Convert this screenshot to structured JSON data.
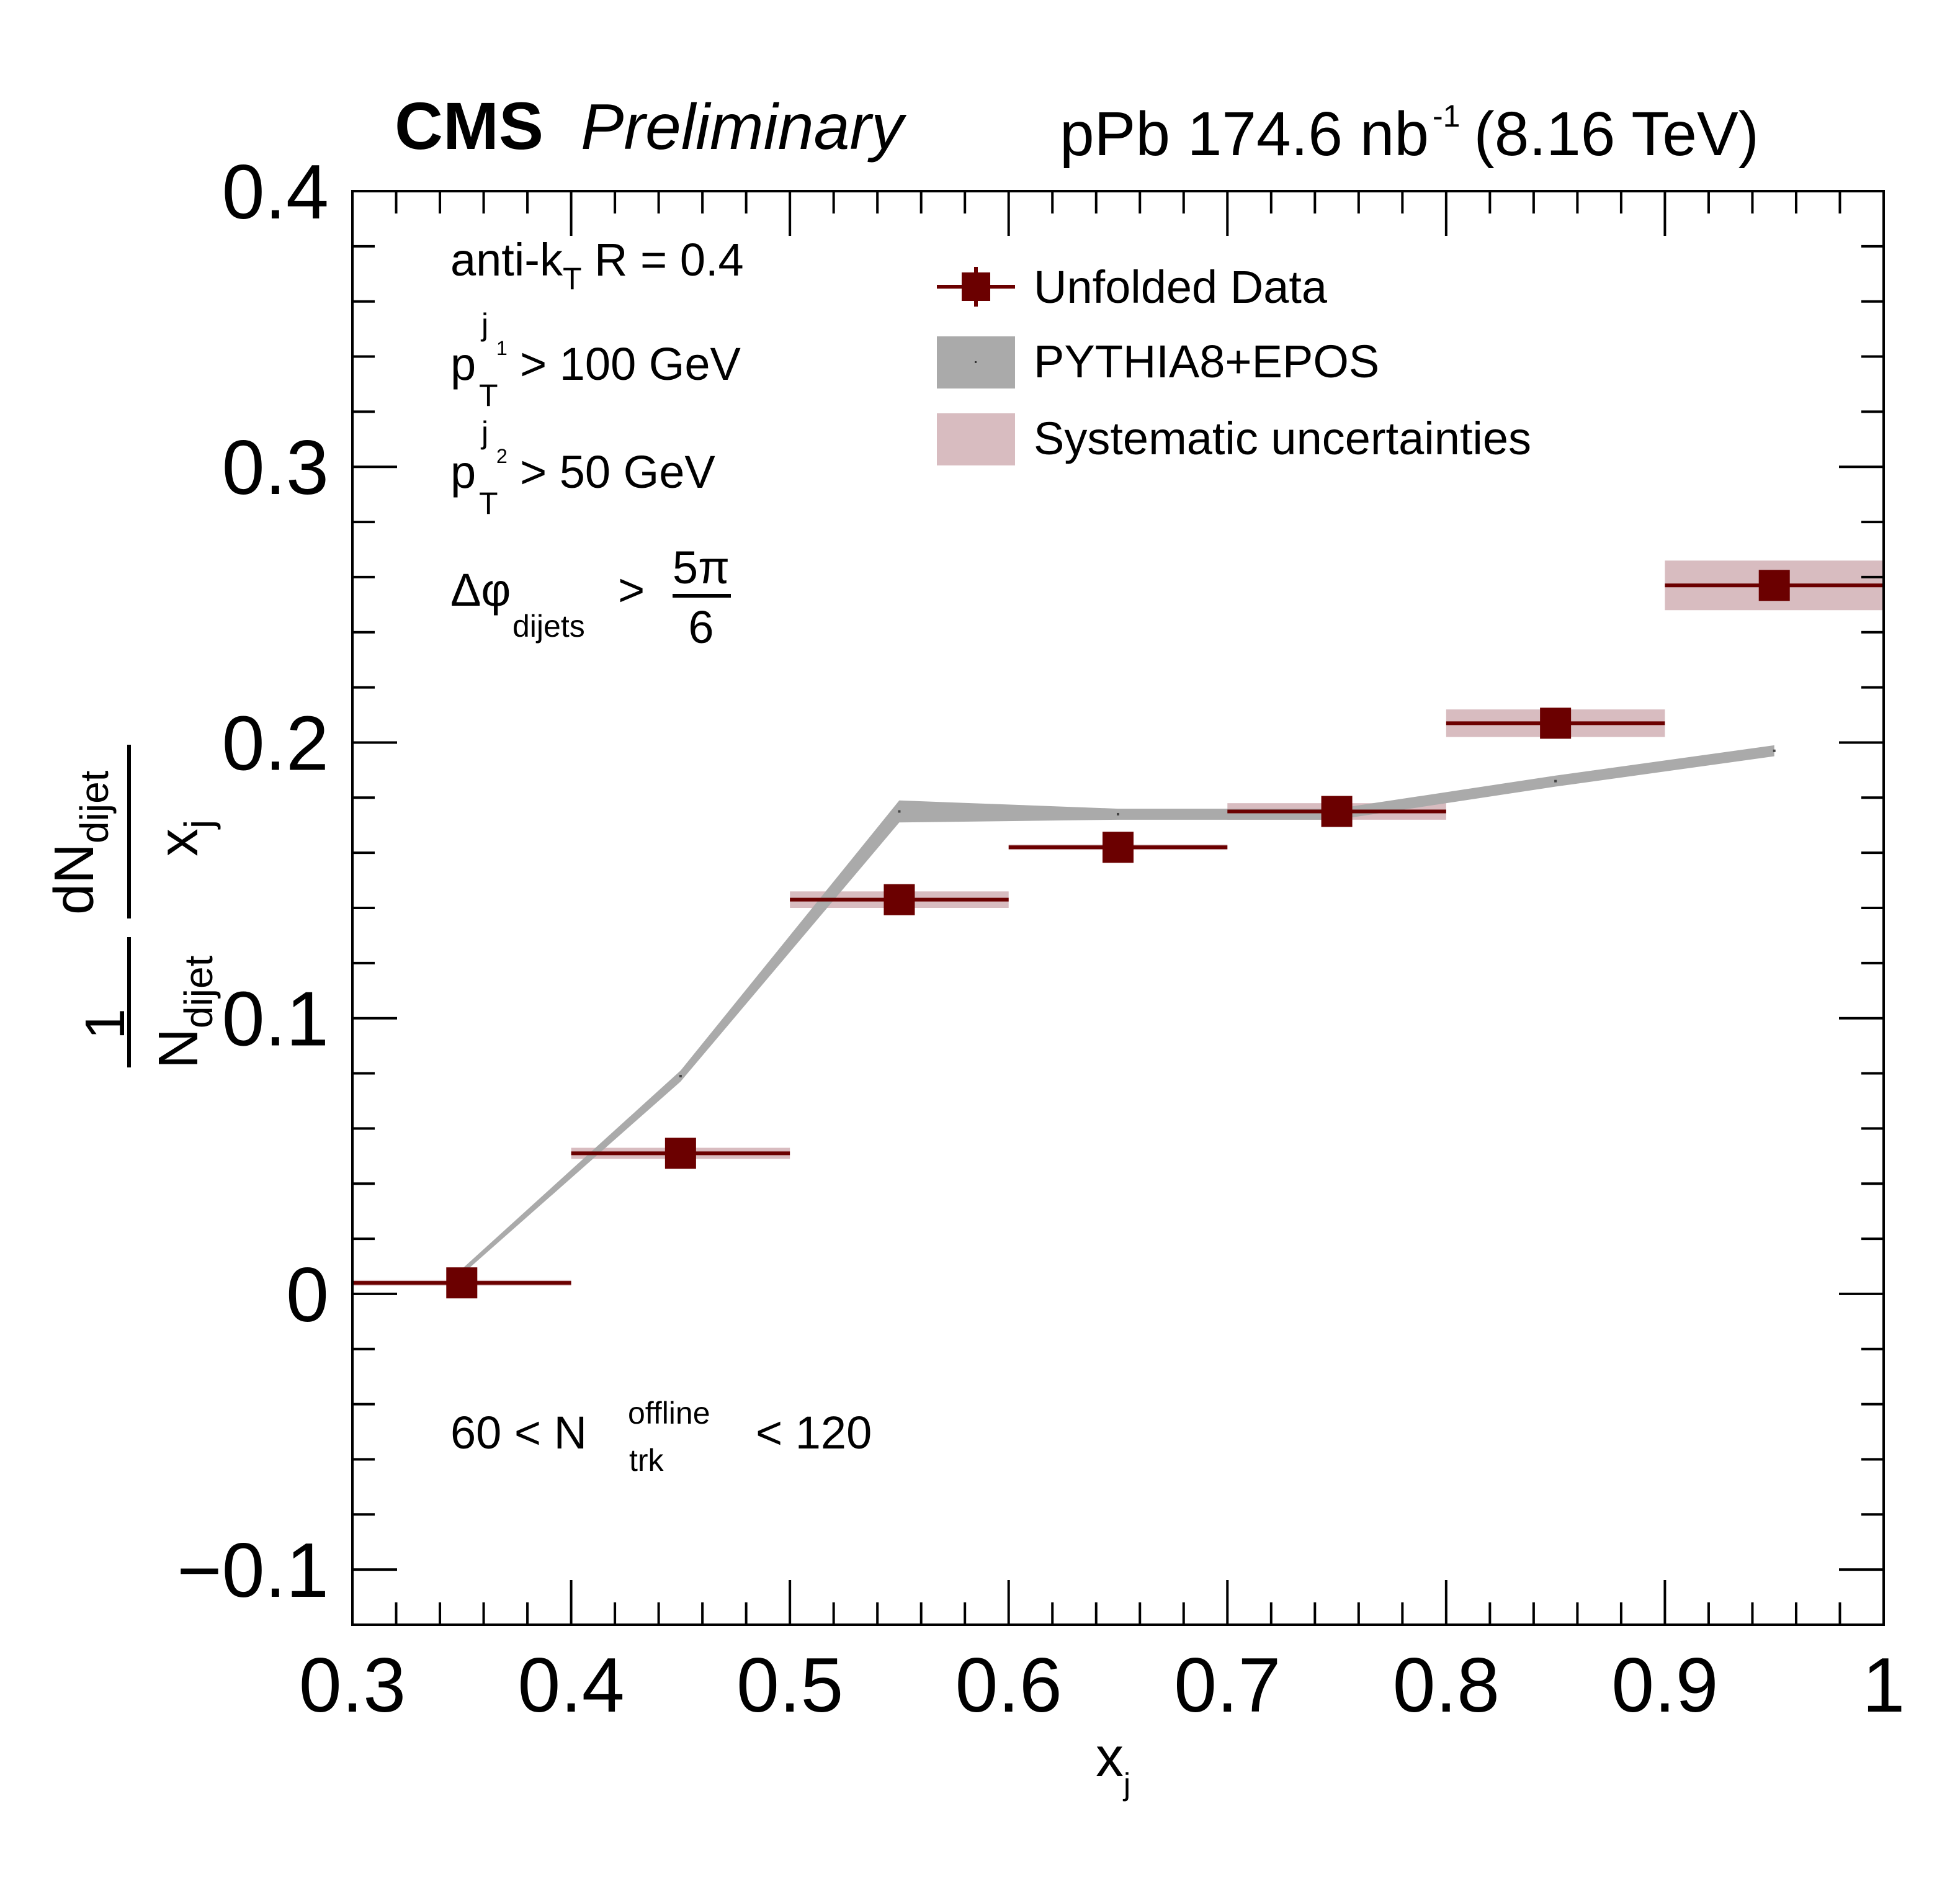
{
  "header": {
    "experiment": "CMS",
    "status": "Preliminary",
    "lumi_system": "pPb 174.6 nb",
    "lumi_exponent": "-1",
    "energy": "(8.16 TeV)"
  },
  "annotations": {
    "algo_prefix": "anti-k",
    "algo_sub": "T",
    "algo_suffix": " R = 0.4",
    "lead_p": "p",
    "lead_sub": "T",
    "lead_sup": "j",
    "lead_sup_idx": "1",
    "lead_cut": "> 100 GeV",
    "sub_p": "p",
    "sub_sub": "T",
    "sub_sup": "j",
    "sub_sup_idx": "2",
    "sub_cut": "> 50 GeV",
    "dphi_symbol": "Δφ",
    "dphi_sub": "dijets",
    "dphi_gt": ">",
    "dphi_num": "5π",
    "dphi_den": "6",
    "mult_low": "60 < N",
    "mult_sub": "trk",
    "mult_sup": "offline",
    "mult_high": "< 120"
  },
  "legend": {
    "data_label": "Unfolded Data",
    "mc_label": "PYTHIA8+EPOS",
    "syst_label": "Systematic uncertainties"
  },
  "axes": {
    "xlabel_main": "x",
    "xlabel_sub": "j",
    "ylabel_one": "1",
    "ylabel_N": "N",
    "ylabel_N_sub": "dijet",
    "ylabel_dN": "dN",
    "ylabel_dN_sub": "dijet",
    "ylabel_x": "x",
    "ylabel_x_sub": "j"
  },
  "colors": {
    "data": "#6b0000",
    "mc_band": "#aaaaaa",
    "syst_band": "#d8bcc0",
    "frame": "#000000"
  },
  "chart_data": {
    "type": "scatter",
    "xlim": [
      0.3,
      1.0
    ],
    "ylim": [
      -0.12,
      0.4
    ],
    "x_ticks": [
      "0.3",
      "0.4",
      "0.5",
      "0.6",
      "0.7",
      "0.8",
      "0.9",
      "1"
    ],
    "y_ticks": [
      "−0.1",
      "0",
      "0.1",
      "0.2",
      "0.3",
      "0.4"
    ],
    "y_tick_values": [
      -0.1,
      0.0,
      0.1,
      0.2,
      0.3,
      0.4
    ],
    "x_tick_values": [
      0.3,
      0.4,
      0.5,
      0.6,
      0.7,
      0.8,
      0.9,
      1.0
    ],
    "legend_position": "top-right",
    "grid": false,
    "series": [
      {
        "name": "Unfolded Data",
        "type": "points_with_xerr",
        "bins_low": [
          0.3,
          0.4,
          0.5,
          0.6,
          0.7,
          0.8,
          0.9
        ],
        "bins_high": [
          0.4,
          0.5,
          0.6,
          0.7,
          0.8,
          0.9,
          1.0
        ],
        "x": [
          0.35,
          0.45,
          0.55,
          0.65,
          0.75,
          0.85,
          0.95
        ],
        "y": [
          0.004,
          0.051,
          0.143,
          0.162,
          0.175,
          0.207,
          0.257
        ],
        "syst_err": [
          0.001,
          0.002,
          0.003,
          0.001,
          0.003,
          0.005,
          0.009
        ]
      },
      {
        "name": "PYTHIA8+EPOS",
        "type": "band",
        "x": [
          0.35,
          0.45,
          0.55,
          0.65,
          0.75,
          0.85,
          0.95
        ],
        "y": [
          0.008,
          0.079,
          0.175,
          0.174,
          0.174,
          0.186,
          0.197
        ],
        "err": [
          0.001,
          0.002,
          0.004,
          0.002,
          0.002,
          0.002,
          0.002
        ]
      }
    ]
  }
}
